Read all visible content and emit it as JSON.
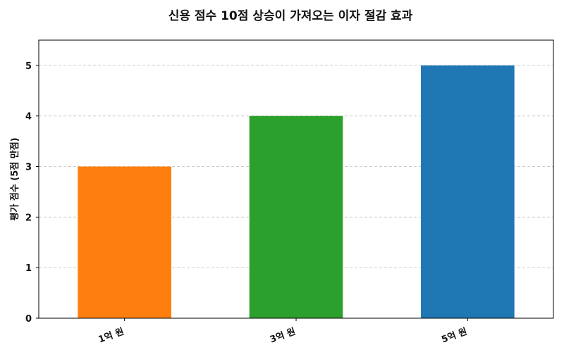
{
  "chart_data": {
    "type": "bar",
    "title": "신용 점수 10점 상승이 가져오는 이자 절감 효과",
    "xlabel": "",
    "ylabel": "평가 점수 (5점 만점)",
    "categories": [
      "1억 원",
      "3억 원",
      "5억 원"
    ],
    "values": [
      3,
      4,
      5
    ],
    "colors": [
      "#ff7f0e",
      "#2ca02c",
      "#1f77b4"
    ],
    "ylim": [
      0,
      5.5
    ],
    "yticks": [
      0,
      1,
      2,
      3,
      4,
      5
    ],
    "grid": true,
    "grid_axis": "y",
    "legend": "none"
  }
}
